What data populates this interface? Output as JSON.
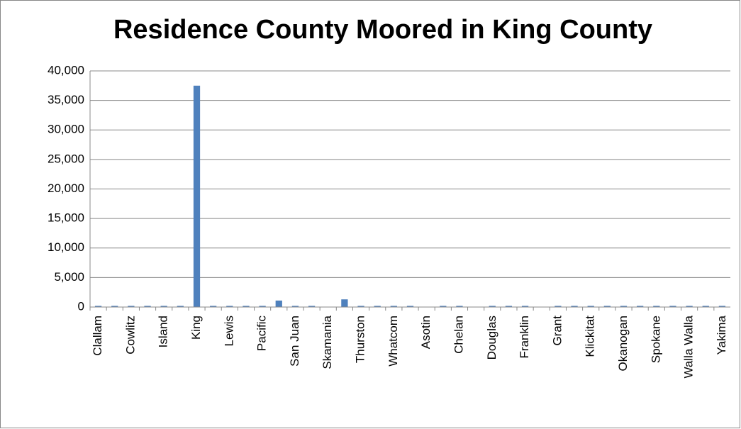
{
  "chart_data": {
    "type": "bar",
    "title": "Residence County Moored in King County",
    "categories": [
      "Clallam",
      null,
      "Cowlitz",
      null,
      "Island",
      null,
      "King",
      null,
      "Lewis",
      null,
      "Pacific",
      null,
      "San Juan",
      null,
      "Skamania",
      null,
      "Thurston",
      null,
      "Whatcom",
      null,
      "Asotin",
      null,
      "Chelan",
      null,
      "Douglas",
      null,
      "Franklin",
      null,
      "Grant",
      null,
      "Klickitat",
      null,
      "Okanogan",
      null,
      "Spokane",
      null,
      "Walla Walla",
      null,
      "Yakima"
    ],
    "values": [
      200,
      200,
      200,
      200,
      200,
      200,
      37500,
      200,
      200,
      200,
      200,
      1100,
      200,
      200,
      0,
      1300,
      200,
      200,
      200,
      200,
      0,
      200,
      200,
      0,
      200,
      200,
      200,
      0,
      200,
      200,
      200,
      200,
      200,
      200,
      200,
      200,
      200,
      200,
      200
    ],
    "color": "#4f81bd",
    "ylim": [
      0,
      40000
    ],
    "yticks": [
      0,
      {
        "value": 5000,
        "label": "5,000"
      },
      {
        "value": 10000,
        "label": "10,000"
      },
      {
        "value": 15000,
        "label": "15,000"
      },
      {
        "value": 20000,
        "label": "20,000"
      },
      {
        "value": 25000,
        "label": "25,000"
      },
      {
        "value": 30000,
        "label": "30,000"
      },
      {
        "value": 35000,
        "label": "35,000"
      },
      {
        "value": 40000,
        "label": "40,000"
      }
    ],
    "grid": true
  }
}
